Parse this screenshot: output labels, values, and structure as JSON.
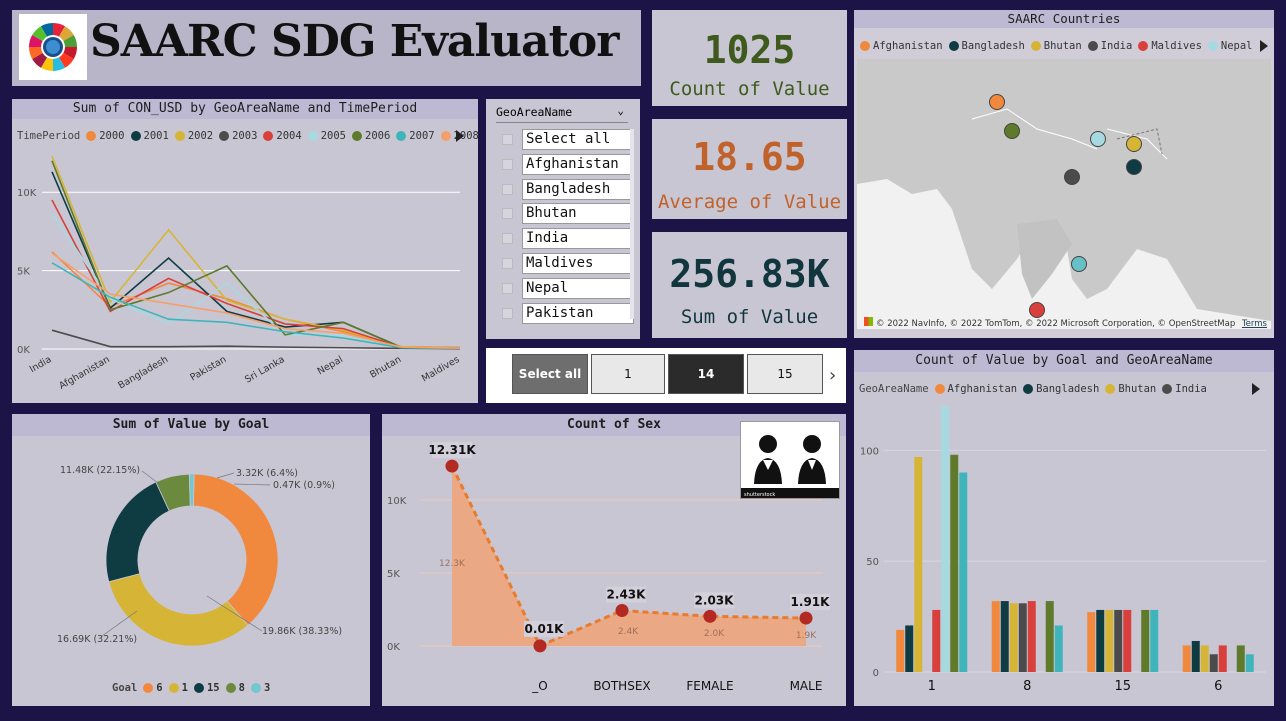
{
  "title": {
    "text": "SAARC SDG Evaluator"
  },
  "kpis": [
    {
      "value": "1025",
      "label": "Count of Value",
      "color": "#3f5a1d"
    },
    {
      "value": "18.65",
      "label": "Average of Value",
      "color": "#c0622a"
    },
    {
      "value": "256.83K",
      "label": "Sum of Value",
      "color": "#12363d"
    }
  ],
  "map": {
    "title": "SAARC Countries",
    "legend": [
      {
        "name": "Afghanistan",
        "color": "#f0883e"
      },
      {
        "name": "Bangladesh",
        "color": "#0f3b43"
      },
      {
        "name": "Bhutan",
        "color": "#d6b536"
      },
      {
        "name": "India",
        "color": "#4b4b4b"
      },
      {
        "name": "Maldives",
        "color": "#d9403c"
      },
      {
        "name": "Nepal",
        "color": "#a6d9e0"
      }
    ],
    "attribution": "© 2022 NavInfo, © 2022 TomTom, © 2022 Microsoft Corporation, © OpenStreetMap",
    "terms": "Terms",
    "markers": [
      {
        "label": "Afghanistan",
        "color": "#f0883e"
      },
      {
        "label": "Pakistan",
        "color": "#5f7a2b"
      },
      {
        "label": "Nepal",
        "color": "#a6d9e0"
      },
      {
        "label": "Bhutan",
        "color": "#d6b536"
      },
      {
        "label": "Bangladesh",
        "color": "#0f3b43"
      },
      {
        "label": "India",
        "color": "#4b4b4b"
      },
      {
        "label": "Sri Lanka",
        "color": "#68c0c7"
      },
      {
        "label": "Maldives",
        "color": "#d9403c"
      }
    ]
  },
  "line_chart": {
    "title": "Sum of CON_USD by GeoAreaName and TimePeriod",
    "legend_label": "TimePeriod",
    "legend": [
      {
        "name": "2000",
        "color": "#f0883e"
      },
      {
        "name": "2001",
        "color": "#0f3b43"
      },
      {
        "name": "2002",
        "color": "#d6b536"
      },
      {
        "name": "2003",
        "color": "#4b4b4b"
      },
      {
        "name": "2004",
        "color": "#d9403c"
      },
      {
        "name": "2005",
        "color": "#a6d9e0"
      },
      {
        "name": "2006",
        "color": "#5f7a2b"
      },
      {
        "name": "2007",
        "color": "#3fb5bb"
      },
      {
        "name": "2008",
        "color": "#f4a06a"
      }
    ]
  },
  "slicer": {
    "header": "GeoAreaName",
    "items": [
      "Select all",
      "Afghanistan",
      "Bangladesh",
      "Bhutan",
      "India",
      "Maldives",
      "Nepal",
      "Pakistan"
    ]
  },
  "goal_slicer": {
    "items": [
      "Select all",
      "1",
      "14",
      "15"
    ]
  },
  "donut": {
    "title": "Sum of Value by Goal",
    "legend_label": "Goal",
    "labels": [
      "19.86K (38.33%)",
      "16.69K (32.21%)",
      "11.48K (22.15%)",
      "3.32K (6.4%)",
      "0.47K (0.9%)"
    ]
  },
  "sex_chart": {
    "title": "Count of Sex",
    "y_ticks": [
      "10K",
      "5K",
      "0K"
    ],
    "value_labels": [
      "12.31K",
      "0.01K",
      "2.43K",
      "2.03K",
      "1.91K"
    ],
    "sub_labels": [
      "12.3K",
      "2.4K",
      "2.0K",
      "1.9K"
    ],
    "image_caption": "shutterstock"
  },
  "bar_chart": {
    "title": "Count of Value by Goal and GeoAreaName",
    "legend_label": "GeoAreaName",
    "legend": [
      {
        "name": "Afghanistan",
        "color": "#f0883e"
      },
      {
        "name": "Bangladesh",
        "color": "#0f3b43"
      },
      {
        "name": "Bhutan",
        "color": "#d6b536"
      },
      {
        "name": "India",
        "color": "#4b4b4b"
      }
    ],
    "y_ticks": [
      "100",
      "50",
      "0"
    ]
  },
  "chart_data": [
    {
      "type": "line",
      "title": "Sum of CON_USD by GeoAreaName and TimePeriod",
      "x": [
        "India",
        "Afghanistan",
        "Bangladesh",
        "Pakistan",
        "Sri Lanka",
        "Nepal",
        "Bhutan",
        "Maldives"
      ],
      "y_ticks": [
        "0K",
        "5K",
        "10K"
      ],
      "ylim": [
        0,
        12500
      ],
      "legend_position": "top",
      "series": [
        {
          "name": "2000",
          "color": "#f0883e",
          "values": [
            6200,
            2700,
            4200,
            3200,
            1900,
            1100,
            150,
            100
          ]
        },
        {
          "name": "2001",
          "color": "#0f3b43",
          "values": [
            11300,
            2600,
            5800,
            2400,
            1400,
            1700,
            100,
            80
          ]
        },
        {
          "name": "2002",
          "color": "#d6b536",
          "values": [
            12300,
            3000,
            7600,
            3100,
            1900,
            1200,
            150,
            80
          ]
        },
        {
          "name": "2003",
          "color": "#4b4b4b",
          "values": [
            1200,
            150,
            150,
            180,
            120,
            80,
            40,
            20
          ]
        },
        {
          "name": "2004",
          "color": "#d9403c",
          "values": [
            9500,
            2400,
            4500,
            2900,
            1600,
            1300,
            100,
            60
          ]
        },
        {
          "name": "2005",
          "color": "#a6d9e0",
          "values": [
            8600,
            3200,
            1600,
            4200,
            900,
            900,
            80,
            50
          ]
        },
        {
          "name": "2006",
          "color": "#5f7a2b",
          "values": [
            12000,
            2500,
            3600,
            5300,
            900,
            1700,
            80,
            70
          ]
        },
        {
          "name": "2007",
          "color": "#3fb5bb",
          "values": [
            5500,
            3300,
            1900,
            1700,
            1100,
            700,
            80,
            60
          ]
        },
        {
          "name": "2008",
          "color": "#f4a06a",
          "values": [
            6100,
            3500,
            2900,
            2300,
            1300,
            1000,
            120,
            60
          ]
        }
      ]
    },
    {
      "type": "pie",
      "title": "Sum of Value by Goal",
      "legend_position": "bottom",
      "categories": [
        "6",
        "1",
        "15",
        "8",
        "3"
      ],
      "values": [
        19860,
        16690,
        11480,
        3320,
        470
      ],
      "colors": [
        "#f0883e",
        "#d6b536",
        "#0f3b43",
        "#6c8a3e",
        "#74c7cc"
      ]
    },
    {
      "type": "area",
      "title": "Count of Sex",
      "categories": [
        "",
        "_O",
        "BOTHSEX",
        "FEMALE",
        "MALE"
      ],
      "values": [
        12310,
        10,
        2430,
        2030,
        1910
      ],
      "ylim": [
        0,
        13000
      ]
    },
    {
      "type": "bar",
      "title": "Count of Value by Goal and GeoAreaName",
      "categories": [
        "1",
        "8",
        "15",
        "6"
      ],
      "ylim": [
        0,
        120
      ],
      "series": [
        {
          "name": "Afghanistan",
          "color": "#f0883e",
          "values": [
            19,
            32,
            27,
            12
          ]
        },
        {
          "name": "Bangladesh",
          "color": "#0f3b43",
          "values": [
            21,
            32,
            28,
            14
          ]
        },
        {
          "name": "Bhutan",
          "color": "#d6b536",
          "values": [
            97,
            31,
            28,
            12
          ]
        },
        {
          "name": "India",
          "color": "#4b4b4b",
          "values": [
            0,
            31,
            28,
            8
          ]
        },
        {
          "name": "Maldives",
          "color": "#d9403c",
          "values": [
            28,
            32,
            28,
            12
          ]
        },
        {
          "name": "Nepal",
          "color": "#a6d9e0",
          "values": [
            120,
            0,
            0,
            0
          ]
        },
        {
          "name": "Pakistan",
          "color": "#5f7a2b",
          "values": [
            98,
            32,
            28,
            12
          ]
        },
        {
          "name": "Sri Lanka",
          "color": "#3fb5bb",
          "values": [
            90,
            21,
            28,
            8
          ]
        }
      ]
    }
  ]
}
